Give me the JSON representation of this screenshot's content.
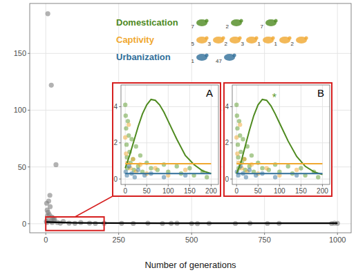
{
  "chart_data": [
    {
      "type": "scatter",
      "xlabel": "Number of generations",
      "xlim": [
        -55,
        1047
      ],
      "ylim": [
        -8,
        194
      ],
      "xticks": [
        0,
        250,
        500,
        750,
        1000
      ],
      "yticks": [
        0,
        50,
        100,
        150
      ],
      "grid": true,
      "highlight": {
        "x": [
          0,
          200
        ],
        "y": [
          -6,
          6
        ]
      },
      "series": [
        {
          "type": "scatter",
          "color": "#7f7f7f",
          "x": [
            7,
            19,
            35,
            14,
            10,
            3,
            5,
            8,
            12,
            15,
            20,
            25,
            28,
            30,
            2,
            4,
            6,
            9,
            18,
            22,
            40,
            50,
            60,
            80,
            100,
            120,
            150,
            170,
            200,
            260,
            300,
            350,
            400,
            430,
            450,
            500,
            520,
            560,
            650,
            700,
            760,
            800,
            980,
            990,
            1000
          ],
          "values": [
            185,
            122,
            52,
            25,
            20,
            18,
            12,
            10,
            8,
            15,
            6,
            5,
            3,
            4,
            2,
            1,
            7,
            3,
            2,
            1,
            1,
            0.5,
            2,
            0.5,
            0.3,
            1,
            0.5,
            0.2,
            0.4,
            0.3,
            0.2,
            0.5,
            0.2,
            0.3,
            0.4,
            0.2,
            0.1,
            0.3,
            0.2,
            0.4,
            0.2,
            0.3,
            0.2,
            0.5,
            0.3
          ]
        },
        {
          "type": "line",
          "color": "#000000",
          "x": [
            0,
            100,
            200,
            400,
            600,
            800,
            1000
          ],
          "values": [
            1.5,
            0.8,
            0.6,
            0.5,
            0.4,
            0.4,
            0.4
          ]
        }
      ]
    },
    {
      "type": "scatter",
      "title": "A",
      "xlim": [
        -10,
        217
      ],
      "ylim": [
        -0.3,
        5.2
      ],
      "xticks": [
        0,
        50,
        100,
        150,
        200
      ],
      "yticks": [
        0,
        2,
        4
      ],
      "grid": true,
      "series": [
        {
          "type": "scatter",
          "color": "#5a9a2a",
          "x": [
            0,
            1,
            2,
            3,
            4,
            5,
            6,
            8,
            10,
            12,
            15,
            18,
            20,
            25,
            30,
            35,
            40,
            50,
            60,
            75,
            90,
            100,
            120,
            130,
            150,
            160,
            180,
            190
          ],
          "values": [
            4.1,
            3.5,
            2.8,
            1.9,
            1.2,
            0.6,
            3.2,
            2.4,
            1.5,
            0.9,
            2.2,
            1.1,
            0.5,
            1.8,
            0.7,
            1.3,
            0.4,
            0.9,
            0.6,
            0.5,
            0.8,
            0.4,
            0.7,
            0.3,
            0.6,
            0.2,
            0.4,
            0.1
          ]
        },
        {
          "type": "scatter",
          "color": "#f0a830",
          "x": [
            0,
            2,
            5,
            8,
            12,
            18,
            25,
            35,
            50,
            70,
            100,
            140
          ],
          "values": [
            2.3,
            1.4,
            0.9,
            3.0,
            0.6,
            1.1,
            0.4,
            0.8,
            0.3,
            0.6,
            0.2,
            0.5
          ]
        },
        {
          "type": "scatter",
          "color": "#2f6e99",
          "x": [
            1,
            4,
            9,
            15,
            22,
            30,
            45,
            60,
            90,
            140
          ],
          "values": [
            0.4,
            0.2,
            0.7,
            0.3,
            0.1,
            0.5,
            0.2,
            0.3,
            0.1,
            0.2
          ]
        },
        {
          "type": "line",
          "color": "#4e8a1f",
          "x": [
            0,
            10,
            20,
            30,
            40,
            50,
            60,
            70,
            80,
            90,
            100,
            120,
            140,
            160,
            180,
            200
          ],
          "values": [
            0.6,
            1.3,
            2.1,
            2.9,
            3.6,
            4.1,
            4.4,
            4.35,
            4.1,
            3.7,
            3.2,
            2.2,
            1.3,
            0.8,
            0.45,
            0.3
          ]
        },
        {
          "type": "line",
          "color": "#f0a830",
          "x": [
            0,
            200
          ],
          "values": [
            0.85,
            0.85
          ]
        },
        {
          "type": "line",
          "color": "#2f6e99",
          "x": [
            0,
            200
          ],
          "values": [
            0.3,
            0.3
          ]
        }
      ]
    },
    {
      "type": "scatter",
      "title": "B",
      "xlim": [
        -10,
        217
      ],
      "ylim": [
        -0.3,
        5.2
      ],
      "xticks": [
        0,
        50,
        100,
        150,
        200
      ],
      "yticks": [
        0,
        2,
        4
      ],
      "grid": true,
      "annotations": [
        {
          "text": "*",
          "x": 88,
          "y": 4.3
        }
      ],
      "series": [
        {
          "type": "scatter",
          "color": "#5a9a2a",
          "x": [
            0,
            1,
            2,
            3,
            4,
            5,
            6,
            8,
            10,
            12,
            15,
            18,
            20,
            25,
            30,
            35,
            40,
            50,
            60,
            75,
            90,
            100,
            120,
            130,
            150,
            160,
            180,
            190
          ],
          "values": [
            4.1,
            3.5,
            2.8,
            1.9,
            1.2,
            0.6,
            3.2,
            2.4,
            1.5,
            0.9,
            2.2,
            1.1,
            0.5,
            1.8,
            0.7,
            1.3,
            0.4,
            0.9,
            0.6,
            0.5,
            0.8,
            0.4,
            0.7,
            0.3,
            0.6,
            0.2,
            0.4,
            0.1
          ]
        },
        {
          "type": "scatter",
          "color": "#f0a830",
          "x": [
            0,
            2,
            5,
            8,
            12,
            18,
            25,
            35,
            50,
            70,
            100,
            140
          ],
          "values": [
            2.3,
            1.4,
            0.9,
            3.0,
            0.6,
            1.1,
            0.4,
            0.8,
            0.3,
            0.6,
            0.2,
            0.5
          ]
        },
        {
          "type": "scatter",
          "color": "#2f6e99",
          "x": [
            1,
            4,
            9,
            15,
            22,
            30,
            45,
            60,
            90,
            140
          ],
          "values": [
            0.4,
            0.2,
            0.7,
            0.3,
            0.1,
            0.5,
            0.2,
            0.3,
            0.1,
            0.2
          ]
        },
        {
          "type": "line",
          "color": "#4e8a1f",
          "x": [
            0,
            10,
            20,
            30,
            40,
            50,
            60,
            70,
            80,
            90,
            100,
            120,
            140,
            160,
            180,
            200
          ],
          "values": [
            0.3,
            0.9,
            1.8,
            2.7,
            3.5,
            4.1,
            4.4,
            4.35,
            4.05,
            3.6,
            3.1,
            2.1,
            1.25,
            0.7,
            0.4,
            0.25
          ]
        },
        {
          "type": "line",
          "color": "#f0a830",
          "x": [
            0,
            200
          ],
          "values": [
            0.85,
            0.85
          ]
        },
        {
          "type": "line",
          "color": "#2f6e99",
          "x": [
            0,
            200
          ],
          "values": [
            0.3,
            0.3
          ]
        }
      ]
    }
  ],
  "legend_panel": {
    "groups": [
      {
        "name": "Domestication",
        "color": "#4e8a1f",
        "counts": [
          7,
          2,
          7
        ]
      },
      {
        "name": "Captivity",
        "color": "#f0a830",
        "counts": [
          5,
          3,
          2,
          3,
          1,
          1,
          2
        ]
      },
      {
        "name": "Urbanization",
        "color": "#2f6e99",
        "counts": [
          1,
          47
        ]
      }
    ]
  }
}
